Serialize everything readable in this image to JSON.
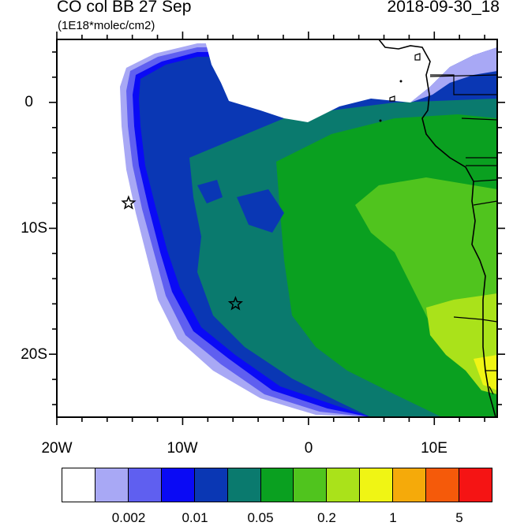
{
  "header": {
    "title": "CO col BB 27 Sep",
    "subtitle": "(1E18*molec/cm2)",
    "timestamp": "2018-09-30_18"
  },
  "map": {
    "lon_labels": [
      "20W",
      "10W",
      "0",
      "10E"
    ],
    "lat_labels": [
      "0",
      "10S",
      "20S"
    ],
    "lon_range": [
      -20,
      15
    ],
    "lat_range": [
      -25,
      5
    ],
    "markers": [
      {
        "name": "star-marker-1",
        "lon": -14.3,
        "lat": -8.0
      },
      {
        "name": "star-marker-2",
        "lon": -5.8,
        "lat": -16.0
      }
    ]
  },
  "colorbar": {
    "colors": [
      "#ffffff",
      "#a8a8f5",
      "#5f5ff0",
      "#0a0af5",
      "#0a37b4",
      "#0a7a6e",
      "#0aa020",
      "#50c41e",
      "#aae21a",
      "#f0f514",
      "#f5aa0a",
      "#f55a0a",
      "#f51414"
    ],
    "labels": [
      "0.002",
      "0.01",
      "0.05",
      "0.2",
      "1",
      "5"
    ]
  }
}
